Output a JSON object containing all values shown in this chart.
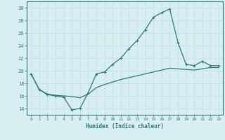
{
  "xlabel": "Humidex (Indice chaleur)",
  "background_color": "#d8eef0",
  "line_color": "#2d7a72",
  "grid_color": "#c0dde0",
  "xlim": [
    -0.5,
    23.5
  ],
  "ylim": [
    13.0,
    31.0
  ],
  "xticks": [
    0,
    1,
    2,
    3,
    4,
    5,
    6,
    7,
    8,
    9,
    10,
    11,
    12,
    13,
    14,
    15,
    16,
    17,
    18,
    19,
    20,
    21,
    22,
    23
  ],
  "yticks": [
    14,
    16,
    18,
    20,
    22,
    24,
    26,
    28,
    30
  ],
  "curve1_x": [
    0,
    1,
    2,
    3,
    4,
    5,
    6,
    7,
    8,
    9,
    10,
    11,
    12,
    13,
    14,
    15,
    16,
    17,
    18,
    19,
    20,
    21,
    22,
    23
  ],
  "curve1_y": [
    19.5,
    17.0,
    16.2,
    16.0,
    15.8,
    13.8,
    14.0,
    16.5,
    19.5,
    19.8,
    21.0,
    22.0,
    23.5,
    24.8,
    26.5,
    28.5,
    29.2,
    29.8,
    24.5,
    21.0,
    20.8,
    21.5,
    20.8,
    20.8
  ],
  "curve2_x": [
    0,
    1,
    2,
    3,
    4,
    5,
    6,
    7,
    8,
    9,
    10,
    11,
    12,
    13,
    14,
    15,
    16,
    17,
    18,
    19,
    20,
    21,
    22,
    23
  ],
  "curve2_y": [
    19.5,
    17.0,
    16.3,
    16.1,
    16.0,
    15.9,
    15.7,
    16.3,
    17.3,
    17.8,
    18.2,
    18.6,
    18.9,
    19.2,
    19.5,
    19.8,
    20.1,
    20.4,
    20.3,
    20.2,
    20.1,
    20.3,
    20.5,
    20.5
  ]
}
